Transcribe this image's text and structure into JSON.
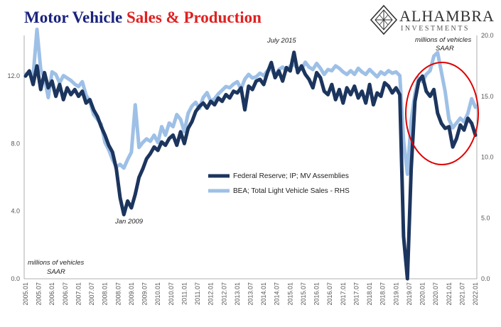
{
  "title": {
    "part1": "Motor Vehicle",
    "part2": "Sales & Production"
  },
  "logo": {
    "name": "ALHAMBRA",
    "sub": "INVESTMENTS",
    "icon": "diamond-compass-logo-icon"
  },
  "colors": {
    "series1": "#1c355e",
    "series2": "#9ec0e6",
    "highlight": "#e00000"
  },
  "chart_data": {
    "type": "line",
    "x_labels": [
      "2005.01",
      "2005.07",
      "2006.01",
      "2006.07",
      "2007.01",
      "2007.07",
      "2008.01",
      "2008.07",
      "2009.01",
      "2009.07",
      "2010.01",
      "2010.07",
      "2011.01",
      "2011.07",
      "2012.01",
      "2012.07",
      "2013.01",
      "2013.07",
      "2014.01",
      "2014.07",
      "2015.01",
      "2015.07",
      "2016.01",
      "2016.07",
      "2017.01",
      "2017.07",
      "2018.01",
      "2018.07",
      "2019.01",
      "2019.07",
      "2020.01",
      "2020.07",
      "2021.01",
      "2021.07",
      "2022.01"
    ],
    "y_left": {
      "ticks": [
        "0.0",
        "4.0",
        "8.0",
        "12.0"
      ],
      "min": 0,
      "max": 14.4
    },
    "y_right": {
      "ticks": [
        "0.0",
        "5.0",
        "10.0",
        "15.0",
        "20.0"
      ],
      "min": 0,
      "max": 20
    },
    "series": [
      {
        "name": "Federal Reserve; IP; MV Assemblies",
        "axis": "left",
        "values": [
          12.0,
          12.3,
          11.5,
          12.6,
          11.2,
          12.2,
          11.3,
          11.7,
          10.8,
          11.5,
          10.6,
          11.3,
          10.9,
          11.2,
          10.8,
          11.1,
          10.4,
          10.6,
          10.0,
          9.6,
          9.0,
          8.5,
          7.9,
          7.5,
          6.5,
          4.8,
          3.8,
          4.6,
          4.2,
          5.0,
          6.0,
          6.5,
          7.1,
          7.4,
          7.8,
          7.6,
          8.1,
          7.9,
          8.3,
          8.5,
          7.9,
          8.7,
          8.0,
          8.9,
          9.3,
          9.9,
          10.2,
          10.4,
          10.1,
          10.5,
          10.3,
          10.7,
          10.5,
          10.9,
          10.7,
          11.1,
          11.0,
          11.3,
          10.0,
          11.4,
          11.2,
          11.7,
          11.8,
          11.5,
          12.2,
          12.8,
          11.9,
          12.3,
          11.7,
          12.5,
          12.3,
          13.4,
          12.2,
          12.6,
          12.1,
          11.8,
          11.3,
          12.2,
          11.9,
          11.1,
          10.9,
          11.5,
          10.6,
          11.2,
          10.4,
          11.3,
          10.9,
          11.4,
          10.7,
          11.1,
          10.4,
          11.5,
          10.3,
          11.0,
          10.8,
          11.6,
          11.4,
          11.0,
          11.3,
          10.9,
          2.5,
          0.0,
          6.5,
          10.5,
          11.7,
          12.0,
          11.1,
          10.8,
          11.2,
          9.8,
          9.2,
          8.9,
          9.0,
          7.8,
          8.3,
          9.1,
          8.8,
          9.5,
          9.2,
          8.5
        ]
      },
      {
        "name": "BEA; Total Light Vehicle Sales - RHS",
        "axis": "right",
        "values": [
          16.8,
          17.0,
          16.6,
          20.5,
          17.2,
          16.5,
          14.9,
          17.0,
          16.8,
          16.1,
          16.7,
          16.5,
          16.3,
          16.0,
          15.8,
          16.2,
          15.1,
          14.6,
          13.5,
          13.1,
          12.7,
          11.2,
          10.6,
          9.8,
          9.2,
          9.4,
          9.1,
          9.8,
          10.4,
          14.3,
          10.8,
          11.2,
          11.5,
          11.3,
          11.8,
          11.2,
          12.5,
          11.8,
          12.8,
          12.5,
          13.5,
          13.1,
          12.1,
          13.6,
          14.2,
          14.5,
          14.0,
          14.9,
          15.3,
          14.6,
          14.8,
          15.2,
          15.5,
          15.8,
          15.7,
          16.0,
          16.2,
          15.6,
          16.4,
          16.8,
          16.5,
          16.6,
          16.9,
          16.7,
          17.1,
          17.3,
          16.6,
          17.2,
          17.4,
          17.1,
          17.5,
          17.6,
          17.3,
          17.2,
          17.8,
          17.4,
          17.2,
          17.7,
          17.3,
          16.8,
          17.2,
          17.1,
          17.5,
          17.3,
          17.0,
          16.8,
          17.1,
          16.8,
          17.3,
          17.0,
          16.8,
          17.2,
          16.9,
          16.6,
          17.0,
          16.8,
          17.1,
          16.9,
          17.0,
          16.7,
          11.4,
          8.6,
          13.0,
          15.2,
          16.5,
          16.2,
          16.8,
          17.1,
          18.3,
          18.6,
          17.0,
          15.4,
          13.1,
          12.4,
          12.8,
          13.2,
          12.9,
          13.6,
          14.8,
          14.1
        ]
      }
    ],
    "legend": [
      "Federal Reserve; IP; MV Assemblies",
      "BEA; Total Light Vehicle Sales - RHS"
    ],
    "annotations": {
      "left_unit_line1": "millions of vehicles",
      "left_unit_line2": "SAAR",
      "right_unit_line1": "millions of vehicles",
      "right_unit_line2": "SAAR",
      "jan2009": "Jan 2009",
      "july2015": "July 2015"
    }
  }
}
